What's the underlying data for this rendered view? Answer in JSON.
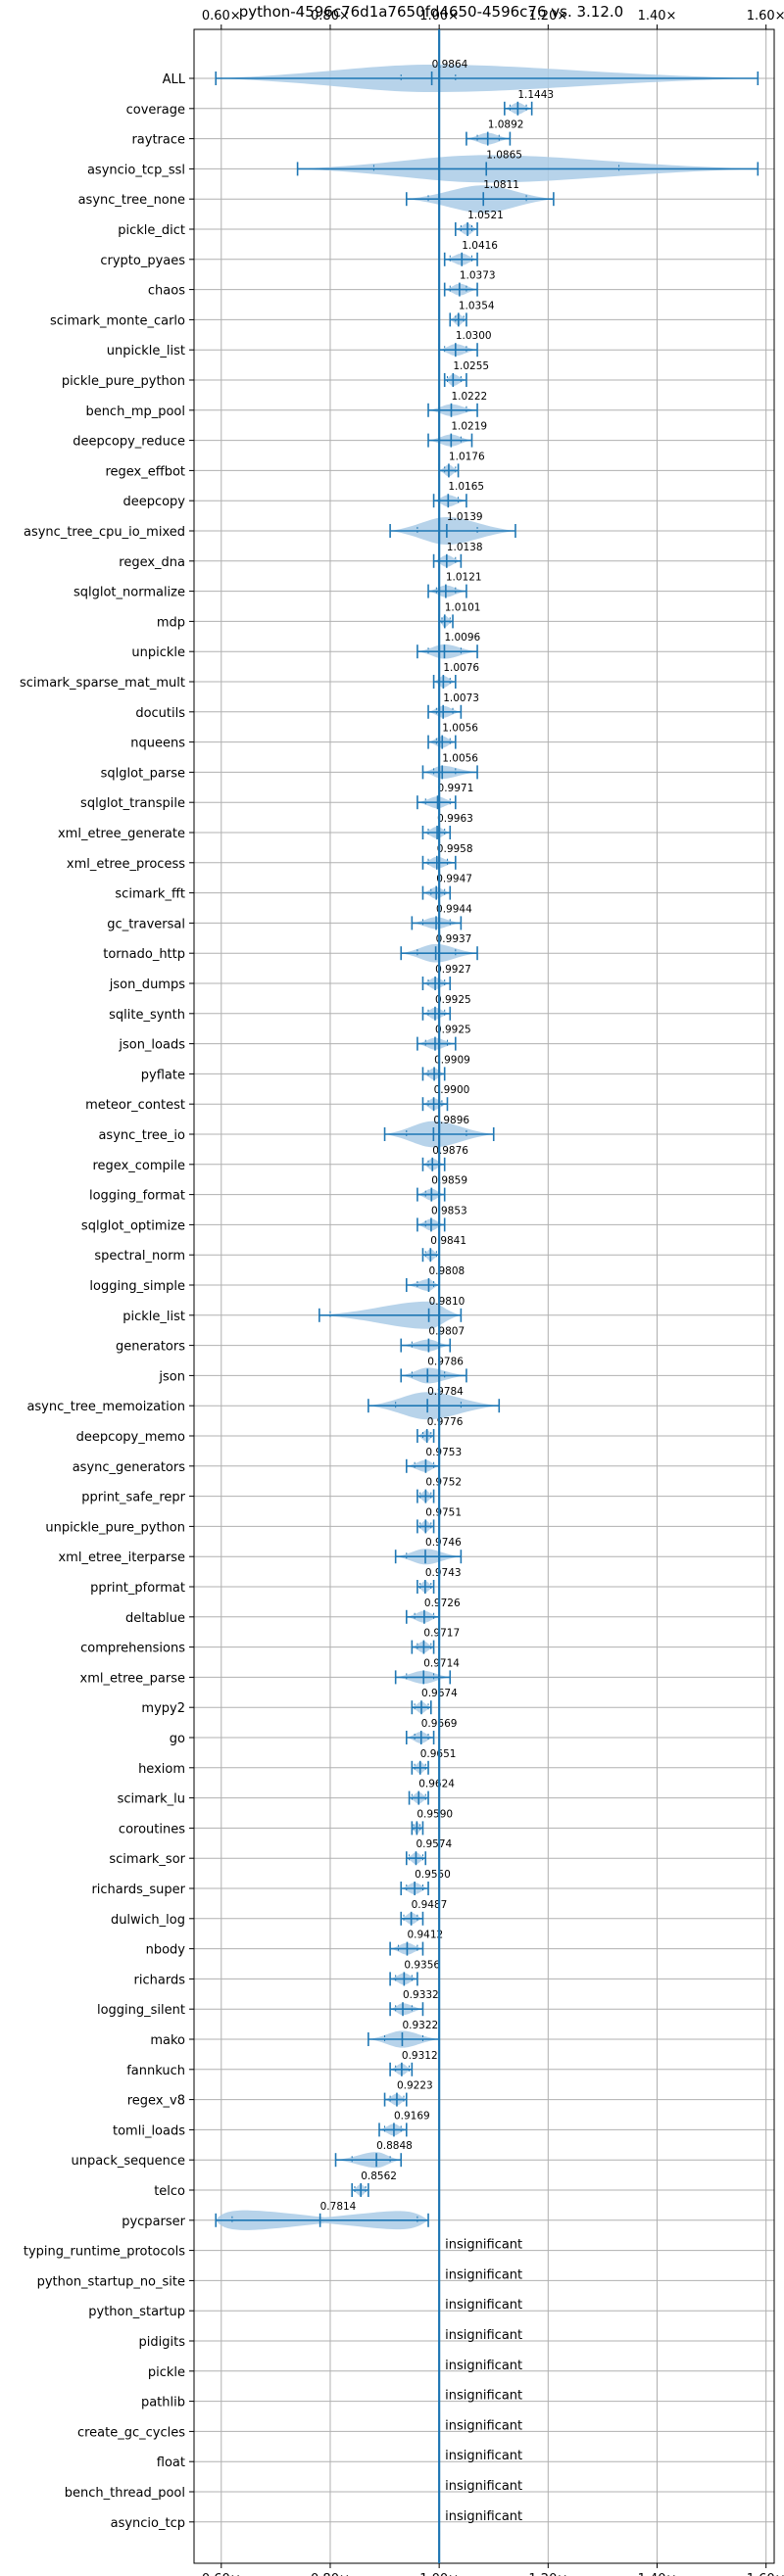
{
  "chart_data": {
    "type": "violin",
    "title": "python-4596c76d1a7650fd4650-4596c76 vs. 3.12.0",
    "xlabel": "",
    "ylabel": "",
    "xlim": [
      0.55,
      1.615
    ],
    "x_ticks": [
      0.6,
      0.8,
      1.0,
      1.2,
      1.4,
      1.6
    ],
    "x_tick_labels": [
      "0.60×",
      "0.80×",
      "1.00×",
      "1.20×",
      "1.40×",
      "1.60×"
    ],
    "reference_line": 1.0,
    "grid": true,
    "insignificant_label": "insignificant",
    "colors": {
      "body": "#aacbe6",
      "line": "#1f77b4",
      "ref": "#1f77b4",
      "grid": "#b0b0b0"
    },
    "benchmarks": [
      {
        "name": "ALL",
        "label": "0.9864",
        "center": 0.9864,
        "min": 0.59,
        "max": 1.585,
        "q1": 0.93,
        "q3": 1.03,
        "width": 0.55
      },
      {
        "name": "coverage",
        "label": "1.1443",
        "center": 1.1443,
        "min": 1.12,
        "max": 1.17,
        "q1": 1.13,
        "q3": 1.16
      },
      {
        "name": "raytrace",
        "label": "1.0892",
        "center": 1.0892,
        "min": 1.05,
        "max": 1.13,
        "q1": 1.07,
        "q3": 1.11
      },
      {
        "name": "asyncio_tcp_ssl",
        "label": "1.0865",
        "center": 1.0865,
        "min": 0.74,
        "max": 1.585,
        "q1": 0.88,
        "q3": 1.33,
        "width": 0.55
      },
      {
        "name": "async_tree_none",
        "label": "1.0811",
        "center": 1.0811,
        "min": 0.94,
        "max": 1.21,
        "q1": 0.98,
        "q3": 1.16
      },
      {
        "name": "pickle_dict",
        "label": "1.0521",
        "center": 1.0521,
        "min": 1.03,
        "max": 1.07,
        "q1": 1.04,
        "q3": 1.06
      },
      {
        "name": "crypto_pyaes",
        "label": "1.0416",
        "center": 1.0416,
        "min": 1.01,
        "max": 1.07,
        "q1": 1.02,
        "q3": 1.06
      },
      {
        "name": "chaos",
        "label": "1.0373",
        "center": 1.0373,
        "min": 1.01,
        "max": 1.07,
        "q1": 1.02,
        "q3": 1.05
      },
      {
        "name": "scimark_monte_carlo",
        "label": "1.0354",
        "center": 1.0354,
        "min": 1.02,
        "max": 1.05,
        "q1": 1.03,
        "q3": 1.045
      },
      {
        "name": "unpickle_list",
        "label": "1.0300",
        "center": 1.03,
        "min": 1.0,
        "max": 1.07,
        "q1": 1.01,
        "q3": 1.05
      },
      {
        "name": "pickle_pure_python",
        "label": "1.0255",
        "center": 1.0255,
        "min": 1.01,
        "max": 1.05,
        "q1": 1.015,
        "q3": 1.04
      },
      {
        "name": "bench_mp_pool",
        "label": "1.0222",
        "center": 1.0222,
        "min": 0.98,
        "max": 1.07,
        "q1": 1.0,
        "q3": 1.05
      },
      {
        "name": "deepcopy_reduce",
        "label": "1.0219",
        "center": 1.0219,
        "min": 0.98,
        "max": 1.06,
        "q1": 1.0,
        "q3": 1.04
      },
      {
        "name": "regex_effbot",
        "label": "1.0176",
        "center": 1.0176,
        "min": 1.0,
        "max": 1.035,
        "q1": 1.01,
        "q3": 1.03
      },
      {
        "name": "deepcopy",
        "label": "1.0165",
        "center": 1.0165,
        "min": 0.99,
        "max": 1.05,
        "q1": 1.0,
        "q3": 1.035
      },
      {
        "name": "async_tree_cpu_io_mixed",
        "label": "1.0139",
        "center": 1.0139,
        "min": 0.91,
        "max": 1.14,
        "q1": 0.96,
        "q3": 1.07
      },
      {
        "name": "regex_dna",
        "label": "1.0138",
        "center": 1.0138,
        "min": 0.99,
        "max": 1.04,
        "q1": 1.0,
        "q3": 1.03
      },
      {
        "name": "sqlglot_normalize",
        "label": "1.0121",
        "center": 1.0121,
        "min": 0.98,
        "max": 1.05,
        "q1": 0.995,
        "q3": 1.03
      },
      {
        "name": "mdp",
        "label": "1.0101",
        "center": 1.0101,
        "min": 1.0,
        "max": 1.025,
        "q1": 1.005,
        "q3": 1.02
      },
      {
        "name": "unpickle",
        "label": "1.0096",
        "center": 1.0096,
        "min": 0.96,
        "max": 1.07,
        "q1": 0.98,
        "q3": 1.04
      },
      {
        "name": "scimark_sparse_mat_mult",
        "label": "1.0076",
        "center": 1.0076,
        "min": 0.99,
        "max": 1.03,
        "q1": 1.0,
        "q3": 1.02
      },
      {
        "name": "docutils",
        "label": "1.0073",
        "center": 1.0073,
        "min": 0.98,
        "max": 1.04,
        "q1": 0.995,
        "q3": 1.025
      },
      {
        "name": "nqueens",
        "label": "1.0056",
        "center": 1.0056,
        "min": 0.98,
        "max": 1.03,
        "q1": 0.995,
        "q3": 1.02
      },
      {
        "name": "sqlglot_parse",
        "label": "1.0056",
        "center": 1.0056,
        "min": 0.97,
        "max": 1.07,
        "q1": 0.99,
        "q3": 1.03
      },
      {
        "name": "sqlglot_transpile",
        "label": "0.9971",
        "center": 0.9971,
        "min": 0.96,
        "max": 1.03,
        "q1": 0.975,
        "q3": 1.02
      },
      {
        "name": "xml_etree_generate",
        "label": "0.9963",
        "center": 0.9963,
        "min": 0.97,
        "max": 1.02,
        "q1": 0.98,
        "q3": 1.01
      },
      {
        "name": "xml_etree_process",
        "label": "0.9958",
        "center": 0.9958,
        "min": 0.97,
        "max": 1.03,
        "q1": 0.98,
        "q3": 1.015
      },
      {
        "name": "scimark_fft",
        "label": "0.9947",
        "center": 0.9947,
        "min": 0.97,
        "max": 1.02,
        "q1": 0.985,
        "q3": 1.01
      },
      {
        "name": "gc_traversal",
        "label": "0.9944",
        "center": 0.9944,
        "min": 0.95,
        "max": 1.04,
        "q1": 0.97,
        "q3": 1.02
      },
      {
        "name": "tornado_http",
        "label": "0.9937",
        "center": 0.9937,
        "min": 0.93,
        "max": 1.07,
        "q1": 0.96,
        "q3": 1.03
      },
      {
        "name": "json_dumps",
        "label": "0.9927",
        "center": 0.9927,
        "min": 0.97,
        "max": 1.02,
        "q1": 0.98,
        "q3": 1.01
      },
      {
        "name": "sqlite_synth",
        "label": "0.9925",
        "center": 0.9925,
        "min": 0.97,
        "max": 1.02,
        "q1": 0.98,
        "q3": 1.01
      },
      {
        "name": "json_loads",
        "label": "0.9925",
        "center": 0.9925,
        "min": 0.96,
        "max": 1.03,
        "q1": 0.975,
        "q3": 1.015
      },
      {
        "name": "pyflate",
        "label": "0.9909",
        "center": 0.9909,
        "min": 0.97,
        "max": 1.01,
        "q1": 0.98,
        "q3": 1.0
      },
      {
        "name": "meteor_contest",
        "label": "0.9900",
        "center": 0.99,
        "min": 0.97,
        "max": 1.015,
        "q1": 0.98,
        "q3": 1.005
      },
      {
        "name": "async_tree_io",
        "label": "0.9896",
        "center": 0.9896,
        "min": 0.9,
        "max": 1.1,
        "q1": 0.94,
        "q3": 1.05
      },
      {
        "name": "regex_compile",
        "label": "0.9876",
        "center": 0.9876,
        "min": 0.97,
        "max": 1.01,
        "q1": 0.98,
        "q3": 1.0
      },
      {
        "name": "logging_format",
        "label": "0.9859",
        "center": 0.9859,
        "min": 0.96,
        "max": 1.01,
        "q1": 0.975,
        "q3": 1.0
      },
      {
        "name": "sqlglot_optimize",
        "label": "0.9853",
        "center": 0.9853,
        "min": 0.96,
        "max": 1.01,
        "q1": 0.975,
        "q3": 1.0
      },
      {
        "name": "spectral_norm",
        "label": "0.9841",
        "center": 0.9841,
        "min": 0.97,
        "max": 1.0,
        "q1": 0.975,
        "q3": 0.995
      },
      {
        "name": "logging_simple",
        "label": "0.9808",
        "center": 0.9808,
        "min": 0.94,
        "max": 1.0,
        "q1": 0.96,
        "q3": 0.99
      },
      {
        "name": "pickle_list",
        "label": "0.9810",
        "center": 0.981,
        "min": 0.78,
        "max": 1.04,
        "q1": 0.8,
        "q3": 1.0
      },
      {
        "name": "generators",
        "label": "0.9807",
        "center": 0.9807,
        "min": 0.93,
        "max": 1.02,
        "q1": 0.95,
        "q3": 1.0
      },
      {
        "name": "json",
        "label": "0.9786",
        "center": 0.9786,
        "min": 0.93,
        "max": 1.05,
        "q1": 0.95,
        "q3": 1.01
      },
      {
        "name": "async_tree_memoization",
        "label": "0.9784",
        "center": 0.9784,
        "min": 0.87,
        "max": 1.11,
        "q1": 0.92,
        "q3": 1.04
      },
      {
        "name": "deepcopy_memo",
        "label": "0.9776",
        "center": 0.9776,
        "min": 0.96,
        "max": 0.99,
        "q1": 0.97,
        "q3": 0.985
      },
      {
        "name": "async_generators",
        "label": "0.9753",
        "center": 0.9753,
        "min": 0.94,
        "max": 1.0,
        "q1": 0.955,
        "q3": 0.99
      },
      {
        "name": "pprint_safe_repr",
        "label": "0.9752",
        "center": 0.9752,
        "min": 0.96,
        "max": 0.99,
        "q1": 0.965,
        "q3": 0.985
      },
      {
        "name": "unpickle_pure_python",
        "label": "0.9751",
        "center": 0.9751,
        "min": 0.96,
        "max": 0.99,
        "q1": 0.965,
        "q3": 0.985
      },
      {
        "name": "xml_etree_iterparse",
        "label": "0.9746",
        "center": 0.9746,
        "min": 0.92,
        "max": 1.04,
        "q1": 0.94,
        "q3": 1.0
      },
      {
        "name": "pprint_pformat",
        "label": "0.9743",
        "center": 0.9743,
        "min": 0.96,
        "max": 0.99,
        "q1": 0.965,
        "q3": 0.985
      },
      {
        "name": "deltablue",
        "label": "0.9726",
        "center": 0.9726,
        "min": 0.94,
        "max": 1.0,
        "q1": 0.955,
        "q3": 0.99
      },
      {
        "name": "comprehensions",
        "label": "0.9717",
        "center": 0.9717,
        "min": 0.95,
        "max": 0.99,
        "q1": 0.96,
        "q3": 0.985
      },
      {
        "name": "xml_etree_parse",
        "label": "0.9714",
        "center": 0.9714,
        "min": 0.92,
        "max": 1.02,
        "q1": 0.94,
        "q3": 0.99
      },
      {
        "name": "mypy2",
        "label": "0.9674",
        "center": 0.9674,
        "min": 0.95,
        "max": 0.985,
        "q1": 0.955,
        "q3": 0.98
      },
      {
        "name": "go",
        "label": "0.9669",
        "center": 0.9669,
        "min": 0.94,
        "max": 0.99,
        "q1": 0.955,
        "q3": 0.98
      },
      {
        "name": "hexiom",
        "label": "0.9651",
        "center": 0.9651,
        "min": 0.95,
        "max": 0.98,
        "q1": 0.955,
        "q3": 0.975
      },
      {
        "name": "scimark_lu",
        "label": "0.9624",
        "center": 0.9624,
        "min": 0.945,
        "max": 0.98,
        "q1": 0.95,
        "q3": 0.975
      },
      {
        "name": "coroutines",
        "label": "0.9590",
        "center": 0.959,
        "min": 0.95,
        "max": 0.97,
        "q1": 0.953,
        "q3": 0.965
      },
      {
        "name": "scimark_sor",
        "label": "0.9574",
        "center": 0.9574,
        "min": 0.94,
        "max": 0.975,
        "q1": 0.945,
        "q3": 0.97
      },
      {
        "name": "richards_super",
        "label": "0.9550",
        "center": 0.955,
        "min": 0.93,
        "max": 0.98,
        "q1": 0.94,
        "q3": 0.97
      },
      {
        "name": "dulwich_log",
        "label": "0.9487",
        "center": 0.9487,
        "min": 0.93,
        "max": 0.97,
        "q1": 0.935,
        "q3": 0.96
      },
      {
        "name": "nbody",
        "label": "0.9412",
        "center": 0.9412,
        "min": 0.91,
        "max": 0.97,
        "q1": 0.925,
        "q3": 0.96
      },
      {
        "name": "richards",
        "label": "0.9356",
        "center": 0.9356,
        "min": 0.91,
        "max": 0.96,
        "q1": 0.92,
        "q3": 0.95
      },
      {
        "name": "logging_silent",
        "label": "0.9332",
        "center": 0.9332,
        "min": 0.91,
        "max": 0.97,
        "q1": 0.92,
        "q3": 0.95
      },
      {
        "name": "mako",
        "label": "0.9322",
        "center": 0.9322,
        "min": 0.87,
        "max": 1.0,
        "q1": 0.9,
        "q3": 0.97
      },
      {
        "name": "fannkuch",
        "label": "0.9312",
        "center": 0.9312,
        "min": 0.91,
        "max": 0.95,
        "q1": 0.92,
        "q3": 0.945
      },
      {
        "name": "regex_v8",
        "label": "0.9223",
        "center": 0.9223,
        "min": 0.9,
        "max": 0.94,
        "q1": 0.91,
        "q3": 0.935
      },
      {
        "name": "tomli_loads",
        "label": "0.9169",
        "center": 0.9169,
        "min": 0.89,
        "max": 0.94,
        "q1": 0.9,
        "q3": 0.93
      },
      {
        "name": "unpack_sequence",
        "label": "0.8848",
        "center": 0.8848,
        "min": 0.81,
        "max": 0.93,
        "q1": 0.84,
        "q3": 0.91
      },
      {
        "name": "telco",
        "label": "0.8562",
        "center": 0.8562,
        "min": 0.84,
        "max": 0.87,
        "q1": 0.845,
        "q3": 0.865
      },
      {
        "name": "pycparser",
        "label": "0.7814",
        "center": 0.7814,
        "min": 0.59,
        "max": 0.98,
        "q1": 0.62,
        "q3": 0.96,
        "bimodal": true
      },
      {
        "name": "typing_runtime_protocols",
        "label": "insignificant"
      },
      {
        "name": "python_startup_no_site",
        "label": "insignificant"
      },
      {
        "name": "python_startup",
        "label": "insignificant"
      },
      {
        "name": "pidigits",
        "label": "insignificant"
      },
      {
        "name": "pickle",
        "label": "insignificant"
      },
      {
        "name": "pathlib",
        "label": "insignificant"
      },
      {
        "name": "create_gc_cycles",
        "label": "insignificant"
      },
      {
        "name": "float",
        "label": "insignificant"
      },
      {
        "name": "bench_thread_pool",
        "label": "insignificant"
      },
      {
        "name": "asyncio_tcp",
        "label": "insignificant"
      }
    ]
  }
}
